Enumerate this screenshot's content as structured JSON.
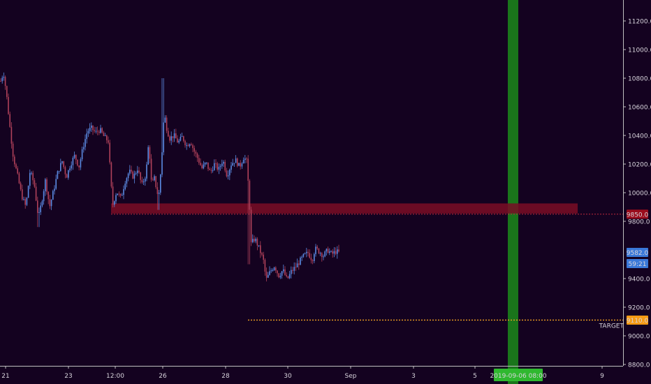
{
  "colors": {
    "background": "#140220",
    "axis_line": "#bfbfbf",
    "candle_up": "#5b8be3",
    "candle_down": "#b0415a",
    "resistance_zone": "#7a0d26",
    "resistance_line": "#c0283c",
    "target_line": "#f0a020",
    "time_window": "#1b8a1b",
    "price_badge": "#3a78d8",
    "resistance_badge": "#9a0c1c",
    "target_badge": "#f59a14",
    "date_badge": "#2fb82f"
  },
  "chart_data": {
    "type": "candlestick",
    "title": "",
    "y_range": [
      8780,
      11300
    ],
    "y_ticks": [
      "8800.0",
      "9000.0",
      "9200.0",
      "9400.0",
      "9800.0",
      "10000.0",
      "10200.0",
      "10400.0",
      "10600.0",
      "10800.0",
      "11000.0",
      "11200.0"
    ],
    "x_ticks": [
      "21",
      "23",
      "12:00",
      "26",
      "28",
      "30",
      "Sep",
      "3",
      "5",
      "9"
    ],
    "current_price": "9582.0",
    "countdown": "59:21",
    "resistance": {
      "price": 9850,
      "label": "9850.0",
      "zone_low": 9855,
      "zone_high": 9925
    },
    "target": {
      "price": 9110,
      "label": "9110.0",
      "text": "TARGET"
    },
    "time_window_label": "2019-09-06  08:00",
    "price_path": [
      [
        0,
        10780
      ],
      [
        4,
        10840
      ],
      [
        8,
        10700
      ],
      [
        14,
        10420
      ],
      [
        18,
        10250
      ],
      [
        24,
        10120
      ],
      [
        30,
        9980
      ],
      [
        36,
        9900
      ],
      [
        42,
        10150
      ],
      [
        48,
        10060
      ],
      [
        54,
        9820
      ],
      [
        58,
        9920
      ],
      [
        64,
        10090
      ],
      [
        70,
        9900
      ],
      [
        76,
        10020
      ],
      [
        82,
        10150
      ],
      [
        88,
        10220
      ],
      [
        94,
        10110
      ],
      [
        100,
        10200
      ],
      [
        106,
        10260
      ],
      [
        112,
        10180
      ],
      [
        118,
        10320
      ],
      [
        124,
        10430
      ],
      [
        130,
        10450
      ],
      [
        136,
        10420
      ],
      [
        142,
        10440
      ],
      [
        148,
        10390
      ],
      [
        154,
        10360
      ],
      [
        160,
        9910
      ],
      [
        166,
        10010
      ],
      [
        172,
        9960
      ],
      [
        178,
        10080
      ],
      [
        184,
        10150
      ],
      [
        190,
        10110
      ],
      [
        196,
        10170
      ],
      [
        202,
        10050
      ],
      [
        208,
        10130
      ],
      [
        212,
        10360
      ],
      [
        216,
        10050
      ],
      [
        220,
        10100
      ],
      [
        226,
        9960
      ],
      [
        230,
        10200
      ],
      [
        234,
        10560
      ],
      [
        238,
        10440
      ],
      [
        242,
        10380
      ],
      [
        248,
        10400
      ],
      [
        254,
        10350
      ],
      [
        260,
        10390
      ],
      [
        266,
        10330
      ],
      [
        272,
        10360
      ],
      [
        276,
        10300
      ],
      [
        282,
        10240
      ],
      [
        288,
        10170
      ],
      [
        294,
        10210
      ],
      [
        300,
        10140
      ],
      [
        306,
        10200
      ],
      [
        312,
        10160
      ],
      [
        318,
        10230
      ],
      [
        324,
        10120
      ],
      [
        330,
        10200
      ],
      [
        336,
        10230
      ],
      [
        342,
        10180
      ],
      [
        348,
        10250
      ],
      [
        352,
        10220
      ],
      [
        356,
        9960
      ],
      [
        358,
        9640
      ],
      [
        364,
        9680
      ],
      [
        370,
        9610
      ],
      [
        376,
        9530
      ],
      [
        380,
        9390
      ],
      [
        386,
        9450
      ],
      [
        392,
        9490
      ],
      [
        398,
        9420
      ],
      [
        404,
        9460
      ],
      [
        410,
        9390
      ],
      [
        416,
        9450
      ],
      [
        422,
        9480
      ],
      [
        428,
        9520
      ],
      [
        434,
        9560
      ],
      [
        440,
        9580
      ],
      [
        446,
        9530
      ],
      [
        450,
        9610
      ],
      [
        456,
        9590
      ],
      [
        462,
        9560
      ],
      [
        468,
        9600
      ],
      [
        474,
        9570
      ],
      [
        480,
        9590
      ],
      [
        484,
        9582
      ]
    ]
  }
}
